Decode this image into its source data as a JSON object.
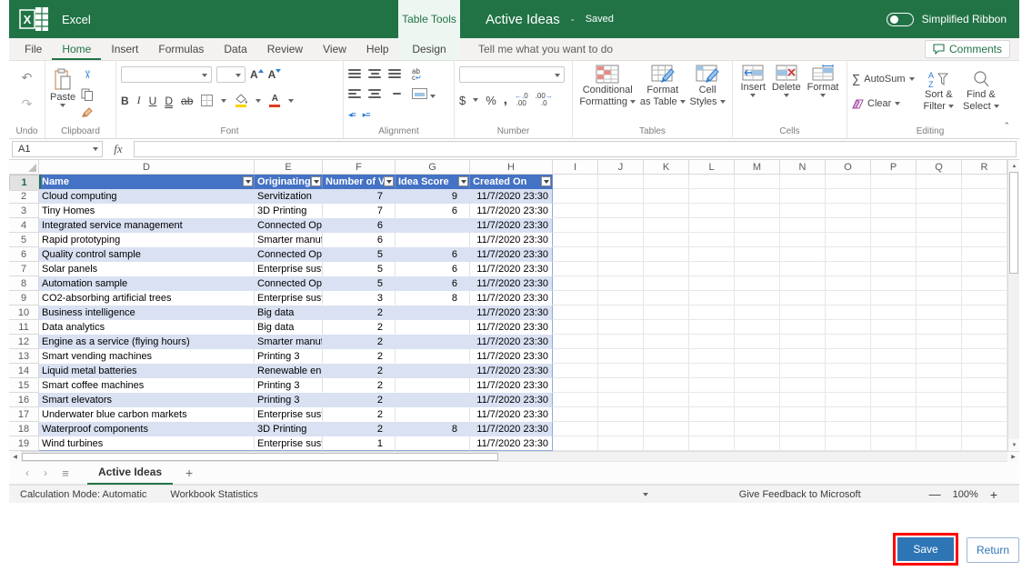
{
  "colors": {
    "excel_green": "#217346",
    "table_header_blue": "#4472C4",
    "band_blue": "#D9E1F2",
    "table_border_blue": "#8EA9DB",
    "save_button_blue": "#2E75B6",
    "highlight_red": "#FF0000"
  },
  "titlebar": {
    "app_name": "Excel",
    "context_tab": "Table Tools",
    "doc_title": "Active Ideas",
    "separator": "-",
    "save_status": "Saved",
    "ribbon_toggle_label": "Simplified Ribbon"
  },
  "tabs": {
    "items": [
      "File",
      "Home",
      "Insert",
      "Formulas",
      "Data",
      "Review",
      "View",
      "Help"
    ],
    "active": "Home",
    "contextual": "Design",
    "tell_me": "Tell me what you want to do",
    "comments": "Comments"
  },
  "ribbon": {
    "groups": {
      "undo": "Undo",
      "clipboard": "Clipboard",
      "font": "Font",
      "alignment": "Alignment",
      "number": "Number",
      "tables": "Tables",
      "cells": "Cells",
      "editing": "Editing"
    },
    "paste": "Paste",
    "font_buttons": {
      "bold": "B",
      "italic": "I",
      "underline": "U",
      "double_underline": "D",
      "strikethrough": "ab"
    },
    "alignment_buttons": {
      "wrap_top": "ab",
      "wrap_bottom": "c"
    },
    "number_buttons": {
      "currency": "$",
      "percent": "%",
      "comma": ",",
      "inc_decimal_top": ".0",
      "inc_decimal_bottom": ".00",
      "dec_decimal_top": ".00",
      "dec_decimal_bottom": ".0"
    },
    "tables_buttons": {
      "conditional_line1": "Conditional",
      "conditional_line2": "Formatting",
      "format_table_line1": "Format",
      "format_table_line2": "as Table",
      "cell_styles_line1": "Cell",
      "cell_styles_line2": "Styles"
    },
    "cells_buttons": {
      "insert": "Insert",
      "delete": "Delete",
      "format": "Format"
    },
    "editing_buttons": {
      "autosum": "AutoSum",
      "clear": "Clear",
      "sort_line1": "Sort &",
      "sort_line2": "Filter",
      "find_line1": "Find &",
      "find_line2": "Select"
    }
  },
  "icons": {
    "undo": "↶",
    "redo": "↷",
    "cut": "✂",
    "autosum": "∑",
    "prev_sheet": "‹",
    "next_sheet": "›",
    "all_sheets": "≡",
    "add_sheet": "+",
    "scroll_up": "▲",
    "scroll_down": "▼",
    "scroll_left": "◀",
    "scroll_right": "▶",
    "collapse_ribbon": "⌃",
    "indent_decrease": "◂≡",
    "indent_increase": "▸≡"
  },
  "formula_bar": {
    "name_box": "A1",
    "fx": "fx",
    "formula": ""
  },
  "grid": {
    "columns": [
      "D",
      "E",
      "F",
      "G",
      "H",
      "I",
      "J",
      "K",
      "L",
      "M",
      "N",
      "O",
      "P",
      "Q",
      "R"
    ],
    "first_row": 1,
    "last_row": 19,
    "table": {
      "headers": [
        "Name",
        "Originating cl",
        "Number of V",
        "Idea Score",
        "Created On"
      ],
      "rows": [
        [
          "Cloud computing",
          "Servitization",
          "7",
          "9",
          "11/7/2020 23:30"
        ],
        [
          "Tiny Homes",
          "3D Printing",
          "7",
          "6",
          "11/7/2020 23:30"
        ],
        [
          "Integrated service management",
          "Connected Oper",
          "6",
          "",
          "11/7/2020 23:30"
        ],
        [
          "Rapid prototyping",
          "Smarter manufa",
          "6",
          "",
          "11/7/2020 23:30"
        ],
        [
          "Quality control sample",
          "Connected Oper",
          "5",
          "6",
          "11/7/2020 23:30"
        ],
        [
          "Solar panels",
          "Enterprise susta",
          "5",
          "6",
          "11/7/2020 23:30"
        ],
        [
          "Automation sample",
          "Connected Oper",
          "5",
          "6",
          "11/7/2020 23:30"
        ],
        [
          "CO2-absorbing artificial trees",
          "Enterprise susta",
          "3",
          "8",
          "11/7/2020 23:30"
        ],
        [
          "Business intelligence",
          "Big data",
          "2",
          "",
          "11/7/2020 23:30"
        ],
        [
          "Data analytics",
          "Big data",
          "2",
          "",
          "11/7/2020 23:30"
        ],
        [
          "Engine as a service (flying hours)",
          "Smarter manufa",
          "2",
          "",
          "11/7/2020 23:30"
        ],
        [
          "Smart vending machines",
          "Printing 3",
          "2",
          "",
          "11/7/2020 23:30"
        ],
        [
          "Liquid metal batteries",
          "Renewable ener",
          "2",
          "",
          "11/7/2020 23:30"
        ],
        [
          "Smart coffee machines",
          "Printing 3",
          "2",
          "",
          "11/7/2020 23:30"
        ],
        [
          "Smart elevators",
          "Printing 3",
          "2",
          "",
          "11/7/2020 23:30"
        ],
        [
          "Underwater blue carbon markets",
          "Enterprise susta",
          "2",
          "",
          "11/7/2020 23:30"
        ],
        [
          "Waterproof components",
          "3D Printing",
          "2",
          "8",
          "11/7/2020 23:30"
        ],
        [
          "Wind turbines",
          "Enterprise susta",
          "1",
          "",
          "11/7/2020 23:30"
        ]
      ]
    }
  },
  "sheet_tabs": {
    "active": "Active Ideas"
  },
  "status_bar": {
    "calculation": "Calculation Mode: Automatic",
    "statistics": "Workbook Statistics",
    "feedback": "Give Feedback to Microsoft",
    "zoom_out": "—",
    "zoom_level": "100%",
    "zoom_in": "+"
  },
  "footer": {
    "save": "Save",
    "return": "Return"
  }
}
